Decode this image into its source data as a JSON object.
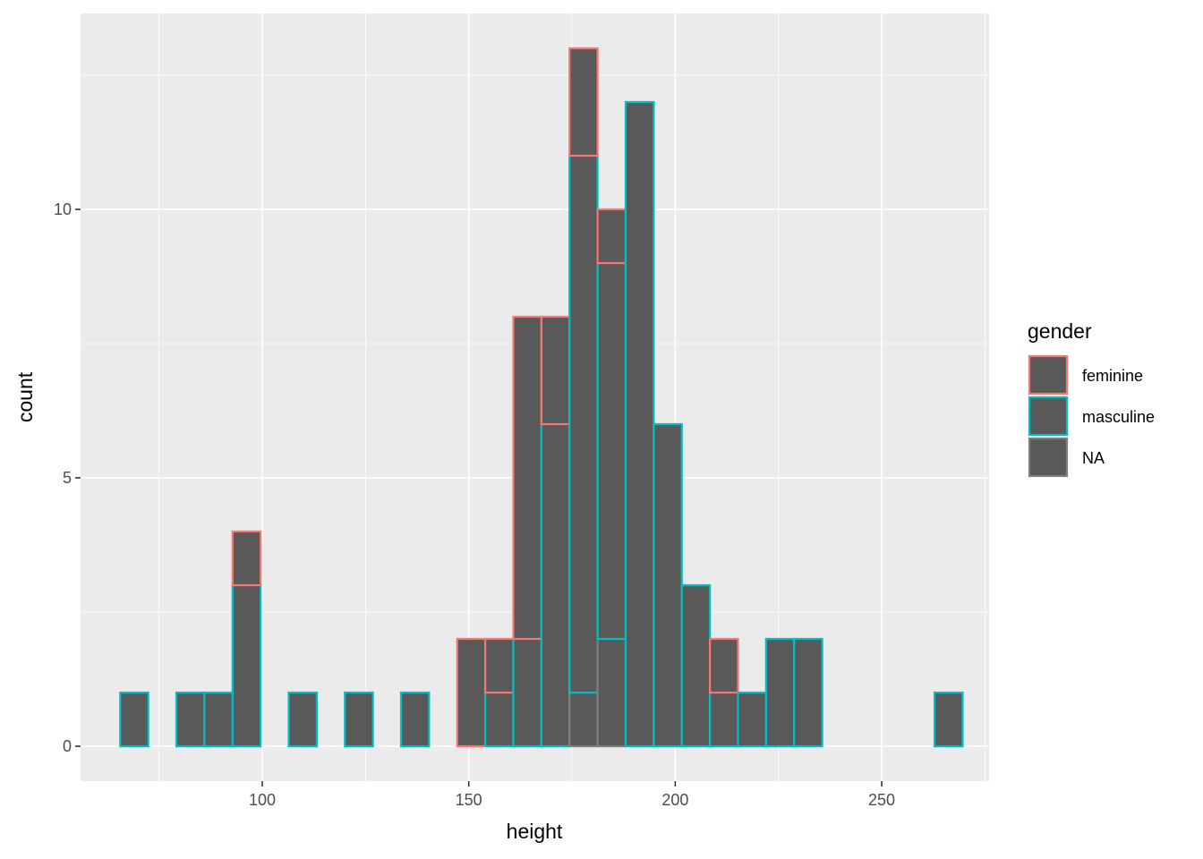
{
  "chart_data": {
    "type": "bar",
    "stacked": true,
    "xlabel": "height",
    "ylabel": "count",
    "xlim": [
      56,
      276
    ],
    "ylim": [
      -0.65,
      13.65
    ],
    "x_ticks": [
      100,
      150,
      200,
      250
    ],
    "y_ticks": [
      0,
      5,
      10
    ],
    "bin_width": 6.8,
    "bin_centers": [
      69.0,
      75.8,
      82.6,
      89.4,
      96.2,
      103.0,
      109.8,
      116.6,
      123.4,
      130.2,
      137.0,
      143.8,
      150.6,
      157.4,
      164.2,
      171.0,
      177.8,
      184.6,
      191.4,
      198.2,
      205.0,
      211.8,
      218.6,
      225.4,
      232.2,
      239.0,
      245.8,
      252.6,
      259.4,
      266.2
    ],
    "series": [
      {
        "name": "NA",
        "color": "#7f7f7f",
        "values": [
          0,
          0,
          0,
          0,
          0,
          0,
          0,
          0,
          0,
          0,
          0,
          0,
          0,
          0,
          0,
          0,
          1,
          2,
          0,
          0,
          0,
          0,
          0,
          0,
          0,
          0,
          0,
          0,
          0,
          0
        ]
      },
      {
        "name": "masculine",
        "color": "#00bfc4",
        "values": [
          1,
          0,
          1,
          1,
          3,
          0,
          1,
          0,
          1,
          0,
          1,
          0,
          0,
          1,
          2,
          6,
          10,
          7,
          12,
          6,
          3,
          1,
          1,
          2,
          2,
          0,
          0,
          0,
          0,
          1
        ]
      },
      {
        "name": "feminine",
        "color": "#f8766d",
        "values": [
          0,
          0,
          0,
          0,
          1,
          0,
          0,
          0,
          0,
          0,
          0,
          0,
          2,
          1,
          6,
          2,
          2,
          1,
          0,
          0,
          0,
          1,
          0,
          0,
          0,
          0,
          0,
          0,
          0,
          0
        ]
      }
    ],
    "grid": true,
    "legend": {
      "title": "gender",
      "placement": "right",
      "entries": [
        "feminine",
        "masculine",
        "NA"
      ]
    },
    "bar_fill": "#595959",
    "panel_background": "#ebebeb",
    "grid_color": "#ffffff"
  }
}
